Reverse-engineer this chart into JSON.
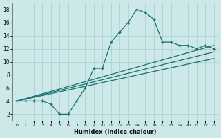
{
  "main_x": [
    0,
    1,
    2,
    3,
    4,
    5,
    6,
    7,
    8,
    9,
    10,
    11,
    12,
    13,
    14,
    15,
    16,
    17,
    18,
    19,
    20,
    21,
    22,
    23
  ],
  "main_y": [
    4,
    4,
    4,
    4,
    3.5,
    2,
    2,
    4,
    6,
    9,
    9,
    13,
    14.5,
    16,
    18,
    17.5,
    16.5,
    13,
    13,
    12.5,
    12.5,
    12,
    12.5,
    12
  ],
  "line1_x": [
    0,
    23
  ],
  "line1_y": [
    4.0,
    12.5
  ],
  "line2_x": [
    0,
    23
  ],
  "line2_y": [
    4.0,
    11.5
  ],
  "line3_x": [
    0,
    23
  ],
  "line3_y": [
    4.0,
    10.5
  ],
  "bg_color": "#cce8e8",
  "grid_color": "#aacece",
  "line_color": "#1a7070",
  "xlabel": "Humidex (Indice chaleur)",
  "xlim": [
    -0.5,
    23.5
  ],
  "ylim": [
    1,
    19
  ],
  "yticks": [
    2,
    4,
    6,
    8,
    10,
    12,
    14,
    16,
    18
  ],
  "xticks": [
    0,
    1,
    2,
    3,
    4,
    5,
    6,
    7,
    8,
    9,
    10,
    11,
    12,
    13,
    14,
    15,
    16,
    17,
    18,
    19,
    20,
    21,
    22,
    23
  ]
}
